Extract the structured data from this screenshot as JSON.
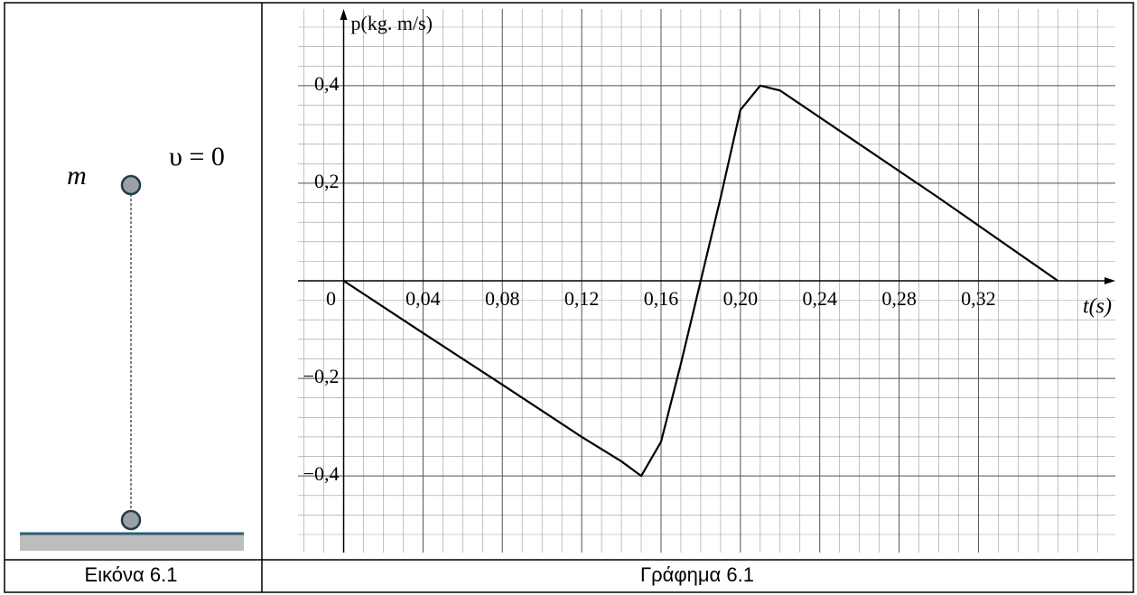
{
  "figure": {
    "mass_label": "m",
    "velocity_label": "υ = 0",
    "caption": "Εικόνα 6.1"
  },
  "chart_data": {
    "type": "line",
    "caption": "Γράφημα 6.1",
    "x_label": "t(s)",
    "y_label": "p(kg. m/s)",
    "x": [
      0,
      0.04,
      0.08,
      0.12,
      0.14,
      0.15,
      0.16,
      0.17,
      0.18,
      0.19,
      0.2,
      0.21,
      0.22,
      0.26,
      0.3,
      0.36
    ],
    "series": [
      {
        "color": "#000000",
        "values": [
          0,
          -0.107,
          -0.213,
          -0.32,
          -0.37,
          -0.4,
          -0.33,
          -0.17,
          0,
          0.17,
          0.35,
          0.4,
          0.39,
          0.28,
          0.17,
          0
        ]
      }
    ],
    "xlim": [
      -0.023,
      0.389
    ],
    "ylim": [
      -0.557,
      0.557
    ],
    "origin_label": "0",
    "xticks": [
      {
        "value": 0.04,
        "label": "0,04"
      },
      {
        "value": 0.08,
        "label": "0,08"
      },
      {
        "value": 0.12,
        "label": "0,12"
      },
      {
        "value": 0.16,
        "label": "0,16"
      },
      {
        "value": 0.2,
        "label": "0,20"
      },
      {
        "value": 0.24,
        "label": "0,24"
      },
      {
        "value": 0.28,
        "label": "0,28"
      },
      {
        "value": 0.32,
        "label": "0,32"
      }
    ],
    "yticks": [
      {
        "value": 0.4,
        "label": "0,4"
      },
      {
        "value": 0.2,
        "label": "0,2"
      },
      {
        "value": -0.2,
        "label": "−0,2"
      },
      {
        "value": -0.4,
        "label": "−0,4"
      }
    ],
    "grid": true
  }
}
